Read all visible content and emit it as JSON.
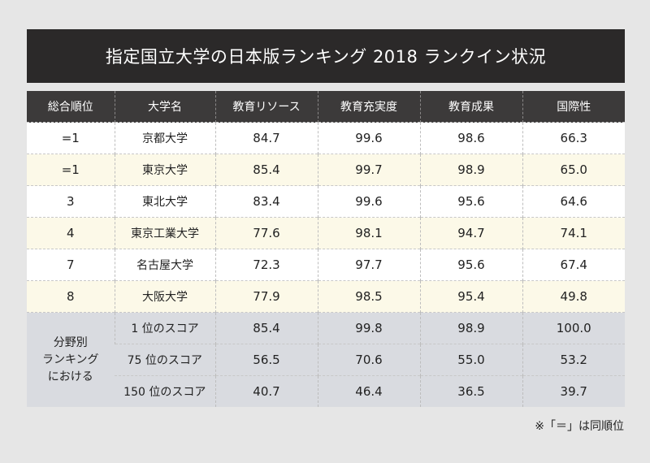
{
  "title": "指定国立大学の日本版ランキング 2018 ランクイン状況",
  "headers": [
    "総合順位",
    "大学名",
    "教育リソース",
    "教育充実度",
    "教育成果",
    "国際性"
  ],
  "rankings": [
    {
      "rank": "=1",
      "name": "京都大学",
      "resources": "84.7",
      "engagement": "99.6",
      "outcomes": "98.6",
      "international": "66.3"
    },
    {
      "rank": "=1",
      "name": "東京大学",
      "resources": "85.4",
      "engagement": "99.7",
      "outcomes": "98.9",
      "international": "65.0"
    },
    {
      "rank": "3",
      "name": "東北大学",
      "resources": "83.4",
      "engagement": "99.6",
      "outcomes": "95.6",
      "international": "64.6"
    },
    {
      "rank": "4",
      "name": "東京工業大学",
      "resources": "77.6",
      "engagement": "98.1",
      "outcomes": "94.7",
      "international": "74.1"
    },
    {
      "rank": "7",
      "name": "名古屋大学",
      "resources": "72.3",
      "engagement": "97.7",
      "outcomes": "95.6",
      "international": "67.4"
    },
    {
      "rank": "8",
      "name": "大阪大学",
      "resources": "77.9",
      "engagement": "98.5",
      "outcomes": "95.4",
      "international": "49.8"
    }
  ],
  "score_group": {
    "label": "分野別\nランキング\nにおける",
    "rows": [
      {
        "label": "1 位のスコア",
        "resources": "85.4",
        "engagement": "99.8",
        "outcomes": "98.9",
        "international": "100.0"
      },
      {
        "label": "75 位のスコア",
        "resources": "56.5",
        "engagement": "70.6",
        "outcomes": "55.0",
        "international": "53.2"
      },
      {
        "label": "150 位のスコア",
        "resources": "40.7",
        "engagement": "46.4",
        "outcomes": "36.5",
        "international": "39.7"
      }
    ]
  },
  "note": "※「＝」は同順位"
}
